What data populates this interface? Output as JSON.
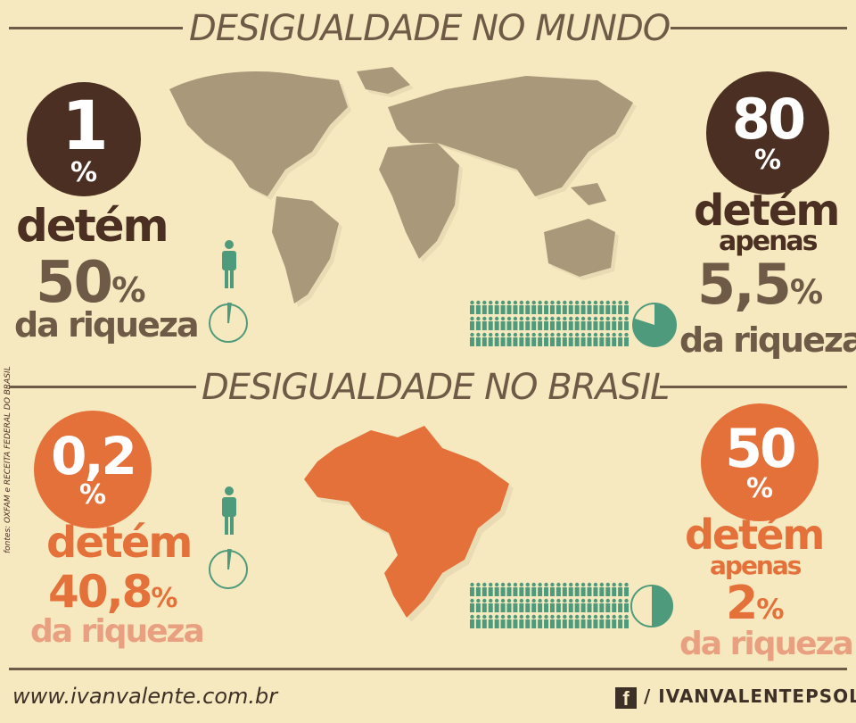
{
  "colors": {
    "background": "#f6e9bf",
    "dark_brown": "#4a2f22",
    "tan": "#6e5a46",
    "map_world": "#aa987b",
    "orange": "#e4703a",
    "pink": "#e9a080",
    "teal": "#4e9a7c"
  },
  "world": {
    "title": "DESIGUALDADE NO MUNDO",
    "left": {
      "percent": "1",
      "percent_sign": "%",
      "verb": "detém",
      "share": "50",
      "share_sign": "%",
      "suffix": "da riqueza",
      "pie_fraction": 0.01
    },
    "right": {
      "percent": "80",
      "percent_sign": "%",
      "verb": "detém",
      "qualifier": "apenas",
      "share": "5,5",
      "share_sign": "%",
      "suffix": "da riqueza",
      "pie_fraction": 0.8
    }
  },
  "brazil": {
    "title": "DESIGUALDADE NO BRASIL",
    "left": {
      "percent": "0,2",
      "percent_sign": "%",
      "verb": "detém",
      "share": "40,8",
      "share_sign": "%",
      "suffix": "da riqueza",
      "pie_fraction": 0.002
    },
    "right": {
      "percent": "50",
      "percent_sign": "%",
      "verb": "detém",
      "qualifier": "apenas",
      "share": "2",
      "share_sign": "%",
      "suffix": "da riqueza",
      "pie_fraction": 0.5
    }
  },
  "source_note": "fontes: OXFAM e RECEITA FEDERAL DO BRASIL",
  "footer": {
    "website": "www.ivanvalente.com.br",
    "social_icon": "facebook-icon",
    "social_handle": "/ IVANVALENTEPSOL"
  }
}
